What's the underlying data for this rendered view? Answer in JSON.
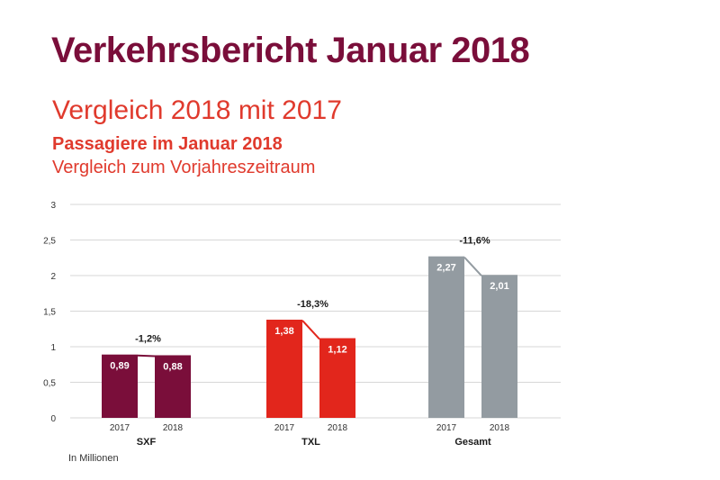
{
  "header": {
    "title": "Verkehrsbericht Januar 2018",
    "subtitle": "Vergleich 2018 mit 2017"
  },
  "chart_data": {
    "type": "bar",
    "title": "Passagiere im Januar 2018",
    "subtitle": "Vergleich zum Vorjahreszeitraum",
    "ylim": [
      0,
      3
    ],
    "yticks": [
      "0",
      "0,5",
      "1",
      "1,5",
      "2",
      "2,5",
      "3"
    ],
    "ytick_values": [
      0,
      0.5,
      1,
      1.5,
      2,
      2.5,
      3
    ],
    "grid": true,
    "unit_note": "In Millionen",
    "groups": [
      {
        "category": "SXF",
        "color": "#7a0e3a",
        "bars": [
          {
            "year": "2017",
            "value": 0.89,
            "label": "0,89"
          },
          {
            "year": "2018",
            "value": 0.88,
            "label": "0,88"
          }
        ],
        "change": "-1,2%"
      },
      {
        "category": "TXL",
        "color": "#e2261c",
        "bars": [
          {
            "year": "2017",
            "value": 1.38,
            "label": "1,38"
          },
          {
            "year": "2018",
            "value": 1.12,
            "label": "1,12"
          }
        ],
        "change": "-18,3%"
      },
      {
        "category": "Gesamt",
        "color": "#939ba1",
        "bars": [
          {
            "year": "2017",
            "value": 2.27,
            "label": "2,27"
          },
          {
            "year": "2018",
            "value": 2.01,
            "label": "2,01"
          }
        ],
        "change": "-11,6%"
      }
    ]
  }
}
